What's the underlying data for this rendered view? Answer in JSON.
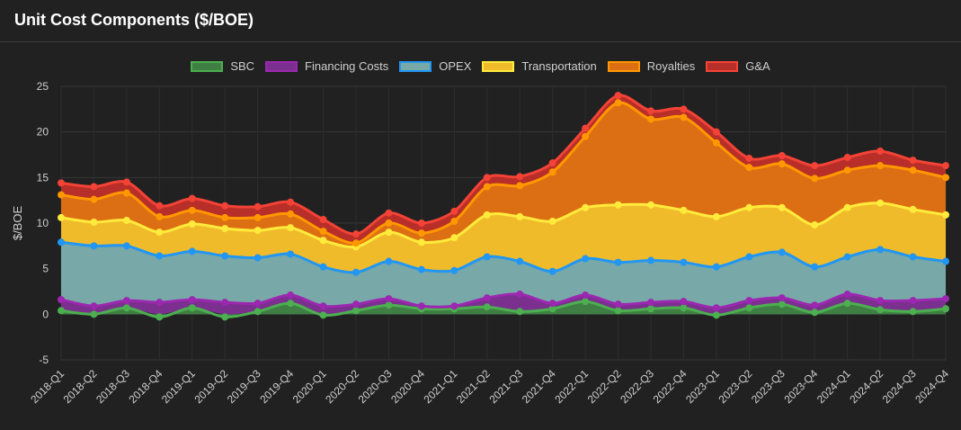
{
  "header": {
    "title": "Unit Cost Components ($/BOE)"
  },
  "chart_data": {
    "type": "area",
    "stacked": true,
    "ylabel": "$/BOE",
    "ylim": [
      -5,
      25
    ],
    "yticks": [
      -5,
      0,
      5,
      10,
      15,
      20,
      25
    ],
    "grid": true,
    "legend_position": "top",
    "categories": [
      "2018-Q1",
      "2018-Q2",
      "2018-Q3",
      "2018-Q4",
      "2019-Q1",
      "2019-Q2",
      "2019-Q3",
      "2019-Q4",
      "2020-Q1",
      "2020-Q2",
      "2020-Q3",
      "2020-Q4",
      "2021-Q1",
      "2021-Q2",
      "2021-Q3",
      "2021-Q4",
      "2022-Q1",
      "2022-Q2",
      "2022-Q3",
      "2022-Q4",
      "2023-Q1",
      "2023-Q2",
      "2023-Q3",
      "2023-Q4",
      "2024-Q1",
      "2024-Q2",
      "2024-Q3",
      "2024-Q4"
    ],
    "series": [
      {
        "name": "SBC",
        "border": "#4caf50",
        "fill": "#3f7f43",
        "values": [
          0.4,
          0.0,
          0.7,
          -0.3,
          0.7,
          -0.3,
          0.3,
          1.2,
          -0.1,
          0.4,
          1.0,
          0.6,
          0.6,
          0.8,
          0.3,
          0.6,
          1.4,
          0.4,
          0.6,
          0.7,
          -0.1,
          0.7,
          1.1,
          0.2,
          1.2,
          0.5,
          0.3,
          0.6
        ]
      },
      {
        "name": "Financing Costs",
        "border": "#9c27b0",
        "fill": "#7b2f8e",
        "values": [
          1.2,
          0.9,
          0.8,
          1.3,
          0.9,
          1.3,
          0.9,
          0.9,
          0.9,
          0.7,
          0.7,
          0.3,
          0.3,
          1.0,
          1.9,
          0.6,
          0.7,
          0.7,
          0.7,
          0.7,
          0.7,
          0.8,
          0.7,
          0.8,
          1.0,
          1.0,
          1.2,
          1.1
        ]
      },
      {
        "name": "OPEX",
        "border": "#2196f3",
        "fill": "#78a8a8",
        "values": [
          6.3,
          6.6,
          6.0,
          5.1,
          5.3,
          5.1,
          5.0,
          4.5,
          4.3,
          3.5,
          4.1,
          4.0,
          3.9,
          4.5,
          3.6,
          3.5,
          4.0,
          4.6,
          4.6,
          4.3,
          4.5,
          4.8,
          5.0,
          4.2,
          4.1,
          5.6,
          4.8,
          4.1
        ]
      },
      {
        "name": "Transportation",
        "border": "#ffeb3b",
        "fill": "#f0bb2b",
        "values": [
          2.7,
          2.6,
          2.8,
          2.6,
          3.0,
          3.0,
          3.0,
          2.9,
          2.9,
          2.8,
          3.2,
          3.0,
          3.6,
          4.6,
          4.9,
          5.5,
          5.6,
          6.3,
          6.1,
          5.7,
          5.5,
          5.4,
          4.9,
          4.6,
          5.4,
          5.1,
          5.2,
          5.1
        ]
      },
      {
        "name": "Royalties",
        "border": "#ff9800",
        "fill": "#dc6f14",
        "values": [
          2.5,
          2.5,
          3.0,
          1.7,
          1.5,
          1.2,
          1.4,
          1.5,
          1.0,
          0.4,
          1.0,
          1.0,
          1.8,
          3.1,
          3.4,
          5.4,
          7.8,
          11.2,
          9.4,
          10.2,
          8.1,
          4.4,
          4.8,
          5.1,
          4.1,
          4.1,
          4.3,
          4.1
        ]
      },
      {
        "name": "G&A",
        "border": "#f44336",
        "fill": "#b82e28",
        "values": [
          1.3,
          1.4,
          1.2,
          1.2,
          1.3,
          1.3,
          1.2,
          1.3,
          1.3,
          1.0,
          1.1,
          1.1,
          1.1,
          1.0,
          1.0,
          1.0,
          0.9,
          0.8,
          0.9,
          0.9,
          1.2,
          1.0,
          0.9,
          1.4,
          1.4,
          1.6,
          1.1,
          1.3
        ]
      }
    ]
  }
}
